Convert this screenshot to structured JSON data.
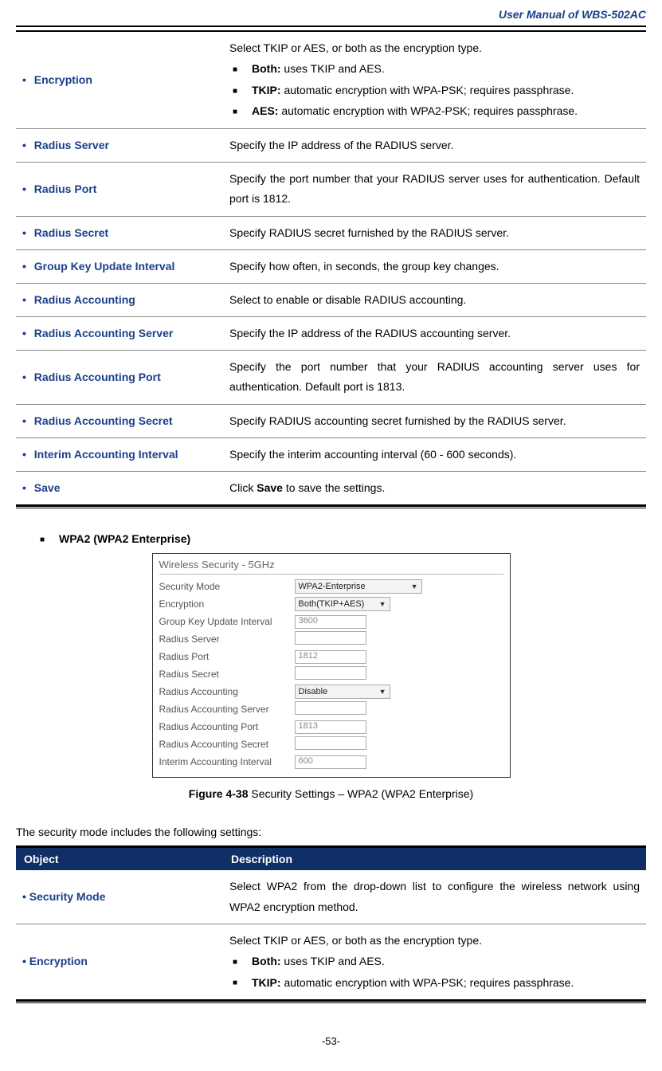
{
  "doc_title": "User Manual of WBS-502AC",
  "page_number": "-53-",
  "table1": {
    "rows": [
      {
        "label": "Encryption",
        "lead": "Select TKIP or AES, or both as the encryption type.",
        "items": [
          {
            "b": "Both:",
            "t": " uses TKIP and AES."
          },
          {
            "b": "TKIP:",
            "t": " automatic encryption with WPA-PSK; requires passphrase."
          },
          {
            "b": "AES:",
            "t": " automatic encryption with WPA2-PSK; requires passphrase."
          }
        ]
      },
      {
        "label": "Radius Server",
        "desc": "Specify the IP address of the RADIUS server."
      },
      {
        "label": "Radius Port",
        "desc": "Specify the port number that your RADIUS server uses for authentication. Default port is 1812."
      },
      {
        "label": "Radius Secret",
        "desc": "Specify RADIUS secret furnished by the RADIUS server."
      },
      {
        "label": "Group Key Update Interval",
        "desc": "Specify how often, in seconds, the group key changes."
      },
      {
        "label": "Radius Accounting",
        "desc": "Select to enable or disable RADIUS accounting."
      },
      {
        "label": "Radius Accounting Server",
        "desc": "Specify the IP address of the RADIUS accounting server."
      },
      {
        "label": "Radius Accounting Port",
        "desc": "Specify the port number that your RADIUS accounting server uses for authentication. Default port is 1813."
      },
      {
        "label": "Radius Accounting Secret",
        "desc": "Specify RADIUS accounting secret furnished by the RADIUS server."
      },
      {
        "label": "Interim Accounting Interval",
        "desc": "Specify the interim accounting interval (60 - 600 seconds)."
      },
      {
        "label": "Save",
        "desc_pre": "Click ",
        "desc_bold": "Save",
        "desc_post": " to save the settings."
      }
    ]
  },
  "section_heading": "WPA2 (WPA2 Enterprise)",
  "screenshot": {
    "title": "Wireless Security - 5GHz",
    "rows": [
      {
        "label": "Security Mode",
        "type": "select",
        "value": "WPA2-Enterprise",
        "wide": true
      },
      {
        "label": "Encryption",
        "type": "select",
        "value": "Both(TKIP+AES)"
      },
      {
        "label": "Group Key Update Interval",
        "type": "input",
        "value": "3600"
      },
      {
        "label": "Radius Server",
        "type": "input",
        "value": ""
      },
      {
        "label": "Radius Port",
        "type": "input",
        "value": "1812"
      },
      {
        "label": "Radius Secret",
        "type": "input",
        "value": ""
      },
      {
        "label": "Radius Accounting",
        "type": "select",
        "value": "Disable"
      },
      {
        "label": "Radius Accounting Server",
        "type": "input",
        "value": ""
      },
      {
        "label": "Radius Accounting Port",
        "type": "input",
        "value": "1813"
      },
      {
        "label": "Radius Accounting Secret",
        "type": "input",
        "value": ""
      },
      {
        "label": "Interim Accounting Interval",
        "type": "input",
        "value": "600"
      }
    ]
  },
  "caption_bold": "Figure 4-38",
  "caption_rest": " Security Settings – WPA2 (WPA2 Enterprise)",
  "lead2": "The security mode includes the following settings:",
  "table2": {
    "head_object": "Object",
    "head_desc": "Description",
    "rows": [
      {
        "label": "Security Mode",
        "desc": "Select WPA2 from the drop-down list to configure the wireless network using WPA2 encryption method."
      },
      {
        "label": "Encryption",
        "lead": "Select TKIP or AES, or both as the encryption type.",
        "items": [
          {
            "b": "Both:",
            "t": " uses TKIP and AES."
          },
          {
            "b": "TKIP:",
            "t": " automatic encryption with WPA-PSK; requires passphrase."
          }
        ]
      }
    ]
  }
}
